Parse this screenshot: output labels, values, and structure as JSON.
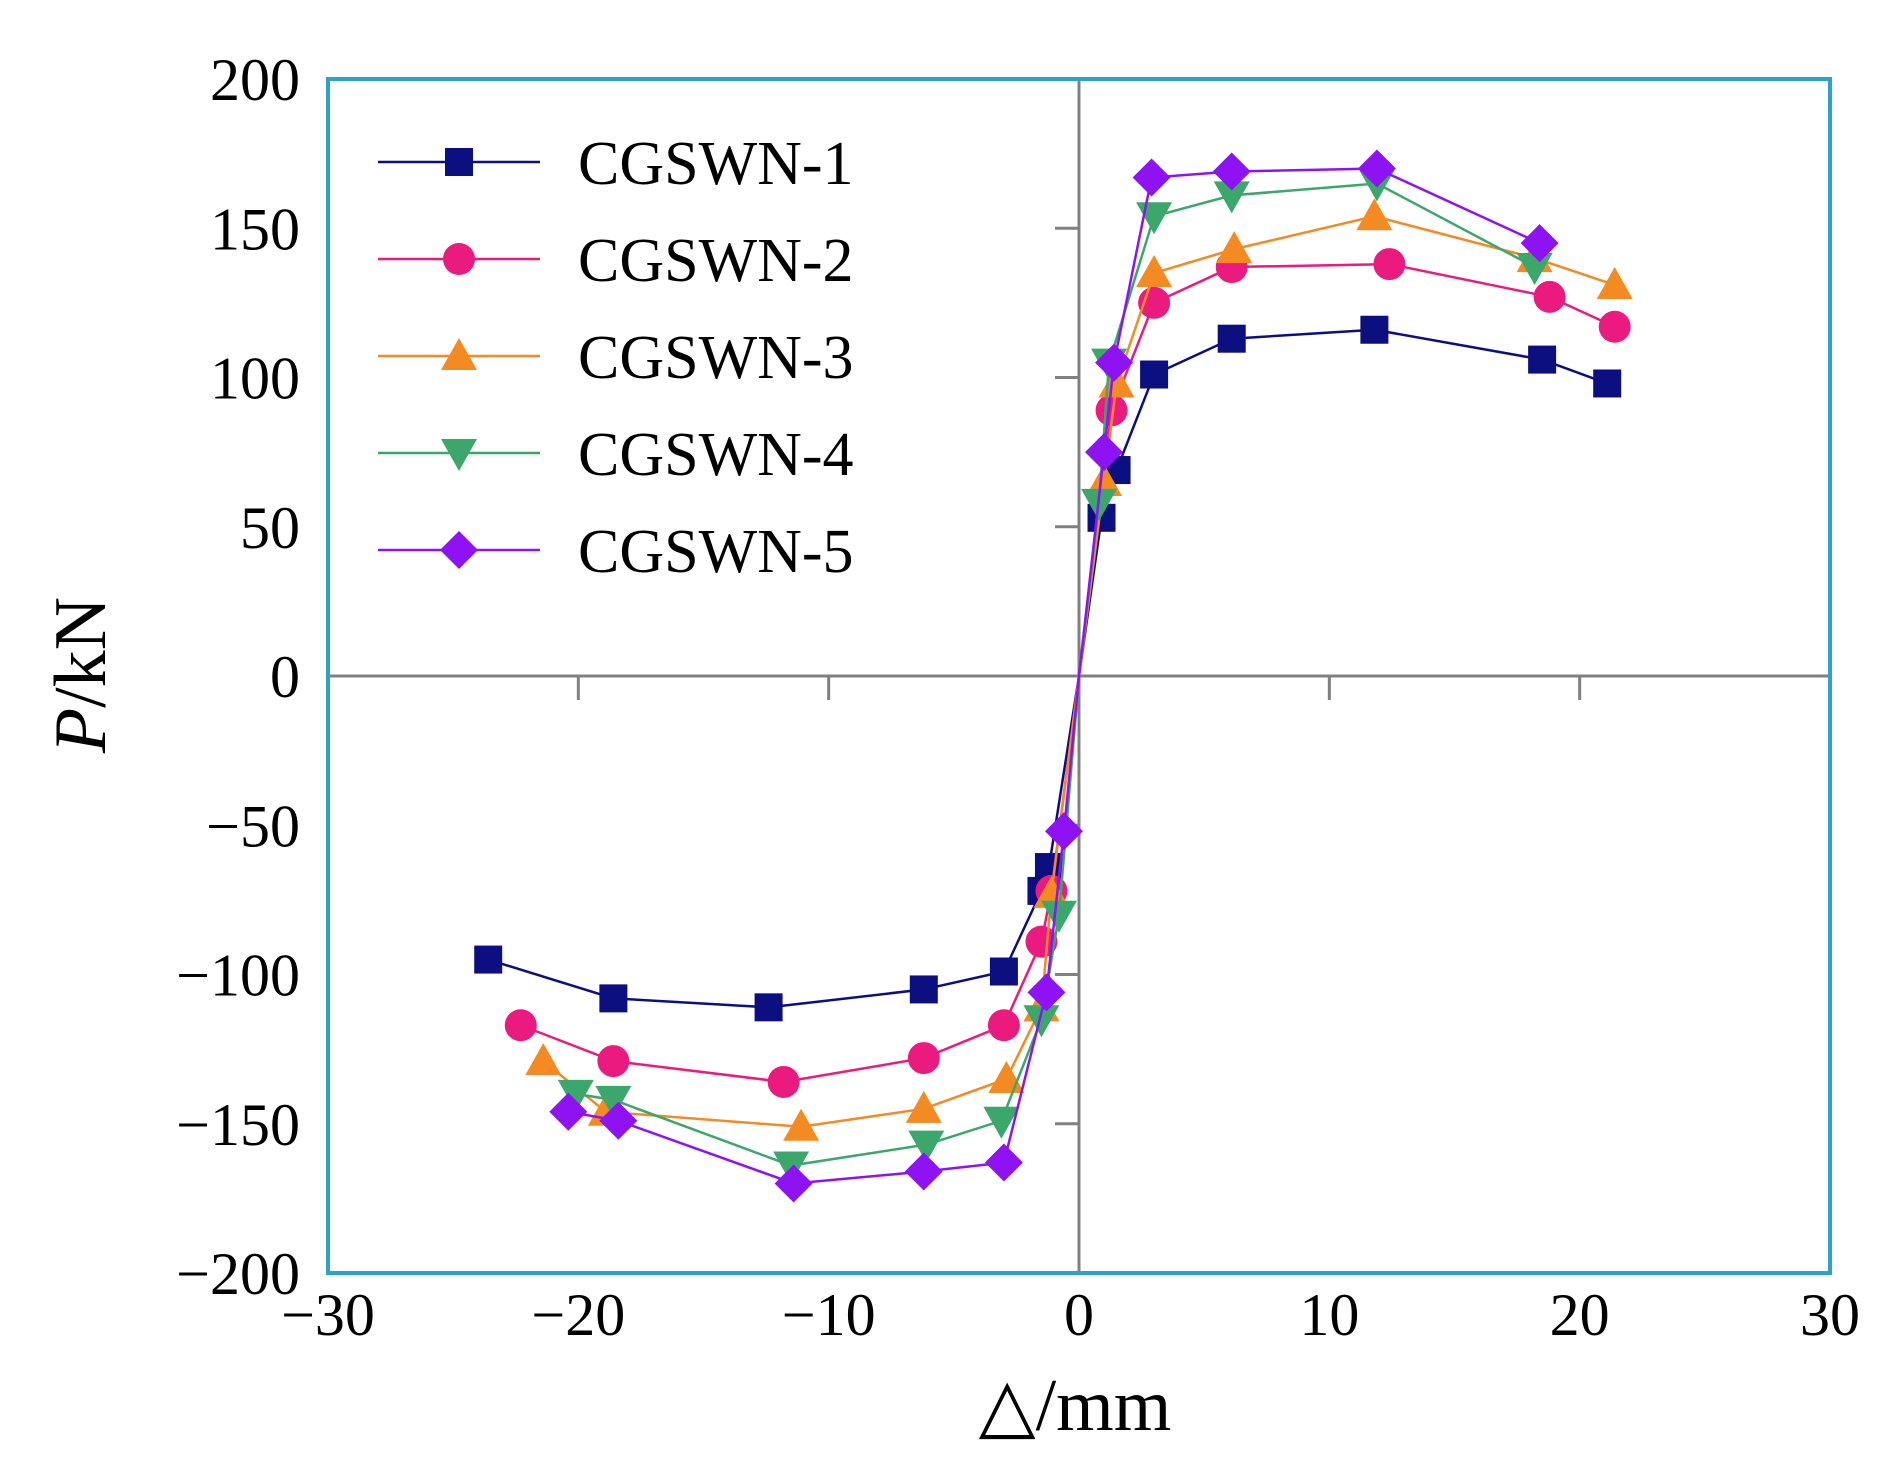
{
  "chart_data": {
    "type": "line",
    "xlabel": "△/mm",
    "ylabel_italic": "P",
    "ylabel_rest": "/kN",
    "xlim": [
      -30,
      30
    ],
    "ylim": [
      -200,
      200
    ],
    "xticks": [
      -30,
      -20,
      -10,
      0,
      10,
      20,
      30
    ],
    "yticks": [
      -200,
      -150,
      -100,
      -50,
      0,
      50,
      100,
      150,
      200
    ],
    "grid": false,
    "legend_position": "top-left",
    "frame_color": "#2aa3c6",
    "series": [
      {
        "name": "CGSWN-1",
        "color": "#0b0f80",
        "marker": "square",
        "x": [
          -23.6,
          -18.6,
          -12.4,
          -6.2,
          -3.0,
          -1.5,
          -1.2,
          0,
          0.9,
          1.5,
          3.0,
          6.1,
          11.8,
          18.5,
          21.1
        ],
        "y": [
          -95,
          -108,
          -111,
          -105,
          -99,
          -72,
          -64,
          0,
          53,
          69,
          101,
          113,
          116,
          106,
          98
        ]
      },
      {
        "name": "CGSWN-2",
        "color": "#ea1a7f",
        "marker": "circle",
        "x": [
          -22.3,
          -18.6,
          -11.8,
          -6.2,
          -3.0,
          -1.5,
          -1.1,
          0,
          1.3,
          3.0,
          6.1,
          12.4,
          18.8,
          21.4
        ],
        "y": [
          -117,
          -129,
          -136,
          -128,
          -117,
          -89,
          -72,
          0,
          89,
          125,
          137,
          138,
          127,
          117
        ]
      },
      {
        "name": "CGSWN-3",
        "color": "#f38a22",
        "marker": "triangle-up",
        "x": [
          -21.4,
          -18.9,
          -11.1,
          -6.2,
          -2.9,
          -1.5,
          -1.1,
          0,
          1.0,
          1.5,
          3.0,
          6.2,
          11.8,
          18.2,
          21.4
        ],
        "y": [
          -129,
          -146,
          -151,
          -145,
          -135,
          -111,
          -73,
          0,
          65,
          98,
          135,
          143,
          154,
          140,
          131
        ]
      },
      {
        "name": "CGSWN-4",
        "color": "#3ca76a",
        "marker": "triangle-down",
        "x": [
          -20.1,
          -18.6,
          -11.5,
          -6.1,
          -3.1,
          -1.5,
          -0.8,
          0,
          0.8,
          1.2,
          3.0,
          6.1,
          11.9,
          18.2
        ],
        "y": [
          -140,
          -142,
          -164,
          -157,
          -149,
          -115,
          -80,
          0,
          58,
          105,
          154,
          161,
          165,
          137
        ]
      },
      {
        "name": "CGSWN-5",
        "color": "#8f12f3",
        "marker": "diamond",
        "x": [
          -20.4,
          -18.4,
          -11.4,
          -6.2,
          -3.0,
          -1.3,
          -0.6,
          0,
          1.0,
          1.4,
          2.9,
          6.1,
          11.9,
          18.4
        ],
        "y": [
          -146,
          -149,
          -170,
          -166,
          -163,
          -106,
          -52,
          0,
          75,
          105,
          167,
          169,
          170,
          145
        ]
      }
    ]
  }
}
